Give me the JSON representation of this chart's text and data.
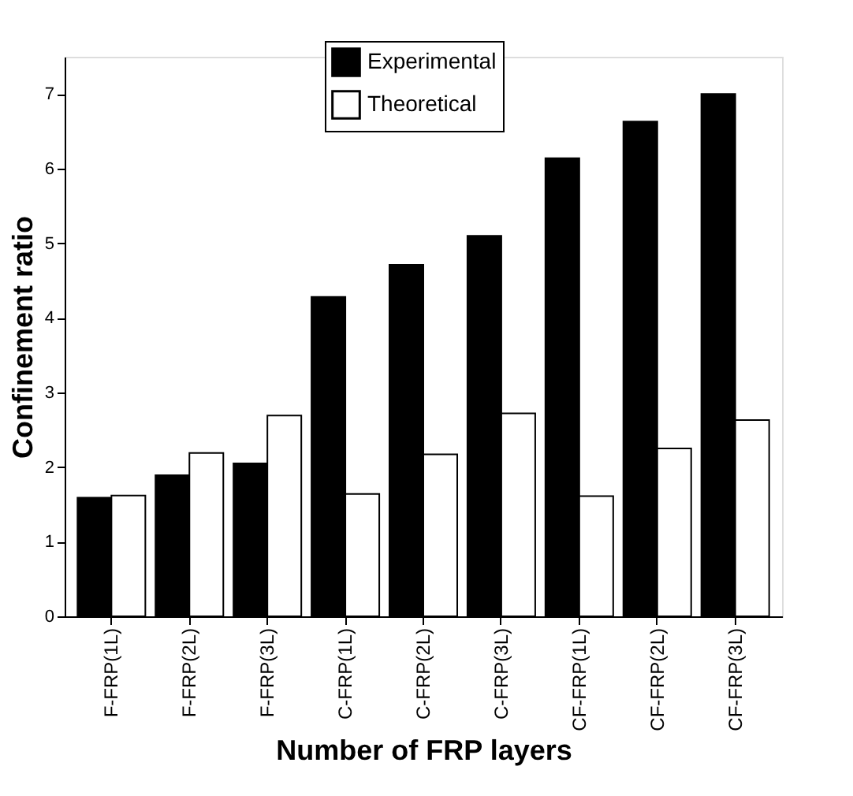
{
  "chart_data": {
    "type": "bar",
    "xlabel": "Number of FRP layers",
    "ylabel": "Confinement ratio",
    "categories": [
      "F-FRP(1L)",
      "F-FRP(2L)",
      "F-FRP(3L)",
      "C-FRP(1L)",
      "C-FRP(2L)",
      "C-FRP(3L)",
      "CF-FRP(1L)",
      "CF-FRP(2L)",
      "CF-FRP(3L)"
    ],
    "series": [
      {
        "name": "Experimental",
        "color": "#000000",
        "values": [
          1.59,
          1.89,
          2.05,
          4.28,
          4.71,
          5.1,
          6.14,
          6.63,
          7.0
        ]
      },
      {
        "name": "Theoretical",
        "color": "#ffffff",
        "values": [
          1.62,
          2.19,
          2.69,
          1.64,
          2.17,
          2.72,
          1.61,
          2.25,
          2.63
        ]
      }
    ],
    "ylim": [
      0,
      7.5
    ],
    "yticks": [
      0,
      1,
      2,
      3,
      4,
      5,
      6,
      7
    ],
    "grid": false,
    "legend": "top"
  }
}
